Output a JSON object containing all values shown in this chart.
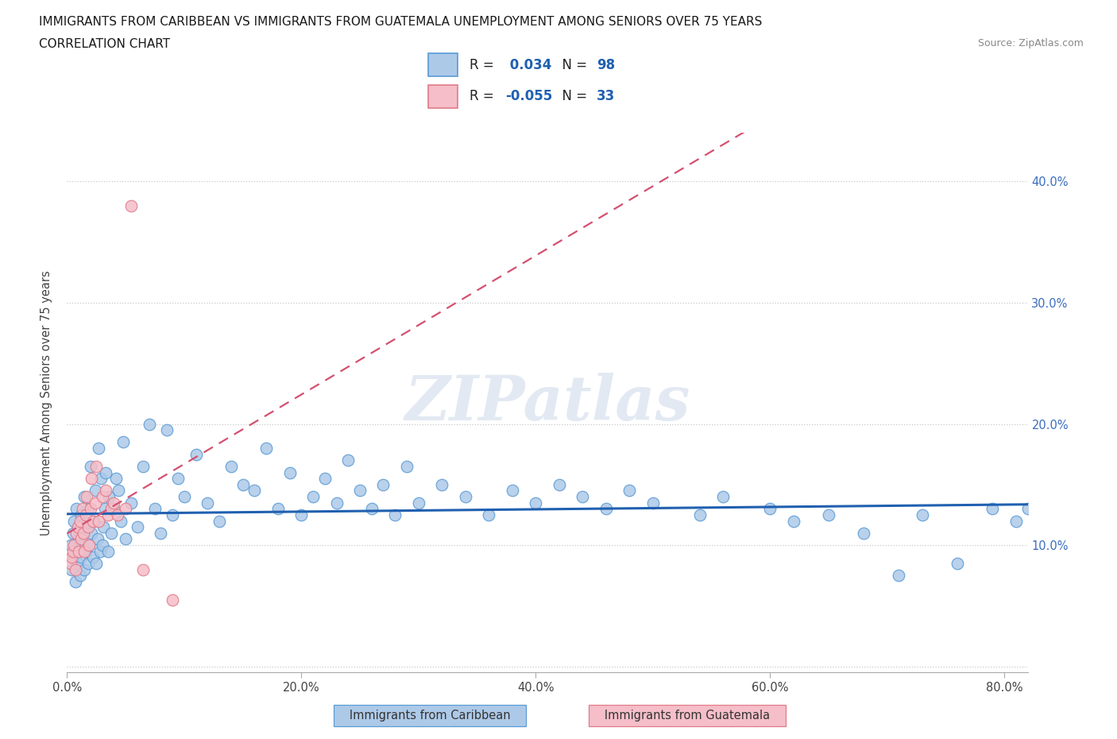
{
  "title_line1": "IMMIGRANTS FROM CARIBBEAN VS IMMIGRANTS FROM GUATEMALA UNEMPLOYMENT AMONG SENIORS OVER 75 YEARS",
  "title_line2": "CORRELATION CHART",
  "source_text": "Source: ZipAtlas.com",
  "ylabel": "Unemployment Among Seniors over 75 years",
  "xlim": [
    0.0,
    0.82
  ],
  "ylim": [
    -0.005,
    0.44
  ],
  "xticks": [
    0.0,
    0.2,
    0.4,
    0.6,
    0.8
  ],
  "xtick_labels": [
    "0.0%",
    "20.0%",
    "40.0%",
    "60.0%",
    "80.0%"
  ],
  "yticks": [
    0.0,
    0.1,
    0.2,
    0.3,
    0.4
  ],
  "ytick_labels_left": [
    "",
    "",
    "",
    "",
    ""
  ],
  "ytick_labels_right": [
    "",
    "10.0%",
    "20.0%",
    "30.0%",
    "40.0%"
  ],
  "caribbean_color": "#adc9e8",
  "caribbean_edge_color": "#5b9bd5",
  "guatemala_color": "#f5bec8",
  "guatemala_edge_color": "#e07b8a",
  "caribbean_R": 0.034,
  "caribbean_N": 98,
  "guatemala_R": -0.055,
  "guatemala_N": 33,
  "caribbean_line_color": "#2060b0",
  "guatemala_line_color": "#d45070",
  "watermark": "ZIPatlas",
  "legend_label_caribbean": "Immigrants from Caribbean",
  "legend_label_guatemala": "Immigrants from Guatemala",
  "caribbean_x": [
    0.003,
    0.004,
    0.005,
    0.005,
    0.006,
    0.007,
    0.008,
    0.008,
    0.009,
    0.01,
    0.01,
    0.011,
    0.012,
    0.012,
    0.013,
    0.014,
    0.015,
    0.015,
    0.016,
    0.017,
    0.018,
    0.018,
    0.019,
    0.02,
    0.021,
    0.022,
    0.023,
    0.024,
    0.025,
    0.026,
    0.027,
    0.028,
    0.029,
    0.03,
    0.031,
    0.032,
    0.033,
    0.035,
    0.036,
    0.038,
    0.04,
    0.042,
    0.044,
    0.046,
    0.048,
    0.05,
    0.055,
    0.06,
    0.065,
    0.07,
    0.075,
    0.08,
    0.085,
    0.09,
    0.095,
    0.1,
    0.11,
    0.12,
    0.13,
    0.14,
    0.15,
    0.16,
    0.17,
    0.18,
    0.19,
    0.2,
    0.21,
    0.22,
    0.23,
    0.24,
    0.25,
    0.26,
    0.27,
    0.28,
    0.29,
    0.3,
    0.32,
    0.34,
    0.36,
    0.38,
    0.4,
    0.42,
    0.44,
    0.46,
    0.48,
    0.5,
    0.54,
    0.56,
    0.6,
    0.62,
    0.65,
    0.68,
    0.71,
    0.73,
    0.76,
    0.79,
    0.81,
    0.82
  ],
  "caribbean_y": [
    0.1,
    0.08,
    0.09,
    0.11,
    0.12,
    0.07,
    0.095,
    0.13,
    0.085,
    0.105,
    0.115,
    0.075,
    0.09,
    0.125,
    0.1,
    0.11,
    0.08,
    0.14,
    0.095,
    0.115,
    0.085,
    0.13,
    0.1,
    0.165,
    0.11,
    0.09,
    0.12,
    0.145,
    0.085,
    0.105,
    0.18,
    0.095,
    0.155,
    0.1,
    0.115,
    0.13,
    0.16,
    0.095,
    0.14,
    0.11,
    0.13,
    0.155,
    0.145,
    0.12,
    0.185,
    0.105,
    0.135,
    0.115,
    0.165,
    0.2,
    0.13,
    0.11,
    0.195,
    0.125,
    0.155,
    0.14,
    0.175,
    0.135,
    0.12,
    0.165,
    0.15,
    0.145,
    0.18,
    0.13,
    0.16,
    0.125,
    0.14,
    0.155,
    0.135,
    0.17,
    0.145,
    0.13,
    0.15,
    0.125,
    0.165,
    0.135,
    0.15,
    0.14,
    0.125,
    0.145,
    0.135,
    0.15,
    0.14,
    0.13,
    0.145,
    0.135,
    0.125,
    0.14,
    0.13,
    0.12,
    0.125,
    0.11,
    0.075,
    0.125,
    0.085,
    0.13,
    0.12,
    0.13
  ],
  "guatemala_x": [
    0.003,
    0.004,
    0.005,
    0.006,
    0.007,
    0.008,
    0.009,
    0.01,
    0.011,
    0.012,
    0.013,
    0.014,
    0.015,
    0.016,
    0.017,
    0.018,
    0.019,
    0.02,
    0.021,
    0.022,
    0.024,
    0.025,
    0.027,
    0.03,
    0.033,
    0.035,
    0.038,
    0.04,
    0.043,
    0.05,
    0.055,
    0.065,
    0.09
  ],
  "guatemala_y": [
    0.085,
    0.09,
    0.095,
    0.1,
    0.08,
    0.11,
    0.115,
    0.095,
    0.12,
    0.105,
    0.13,
    0.11,
    0.095,
    0.125,
    0.14,
    0.115,
    0.1,
    0.13,
    0.155,
    0.12,
    0.135,
    0.165,
    0.12,
    0.14,
    0.145,
    0.125,
    0.13,
    0.135,
    0.125,
    0.13,
    0.38,
    0.08,
    0.055
  ]
}
